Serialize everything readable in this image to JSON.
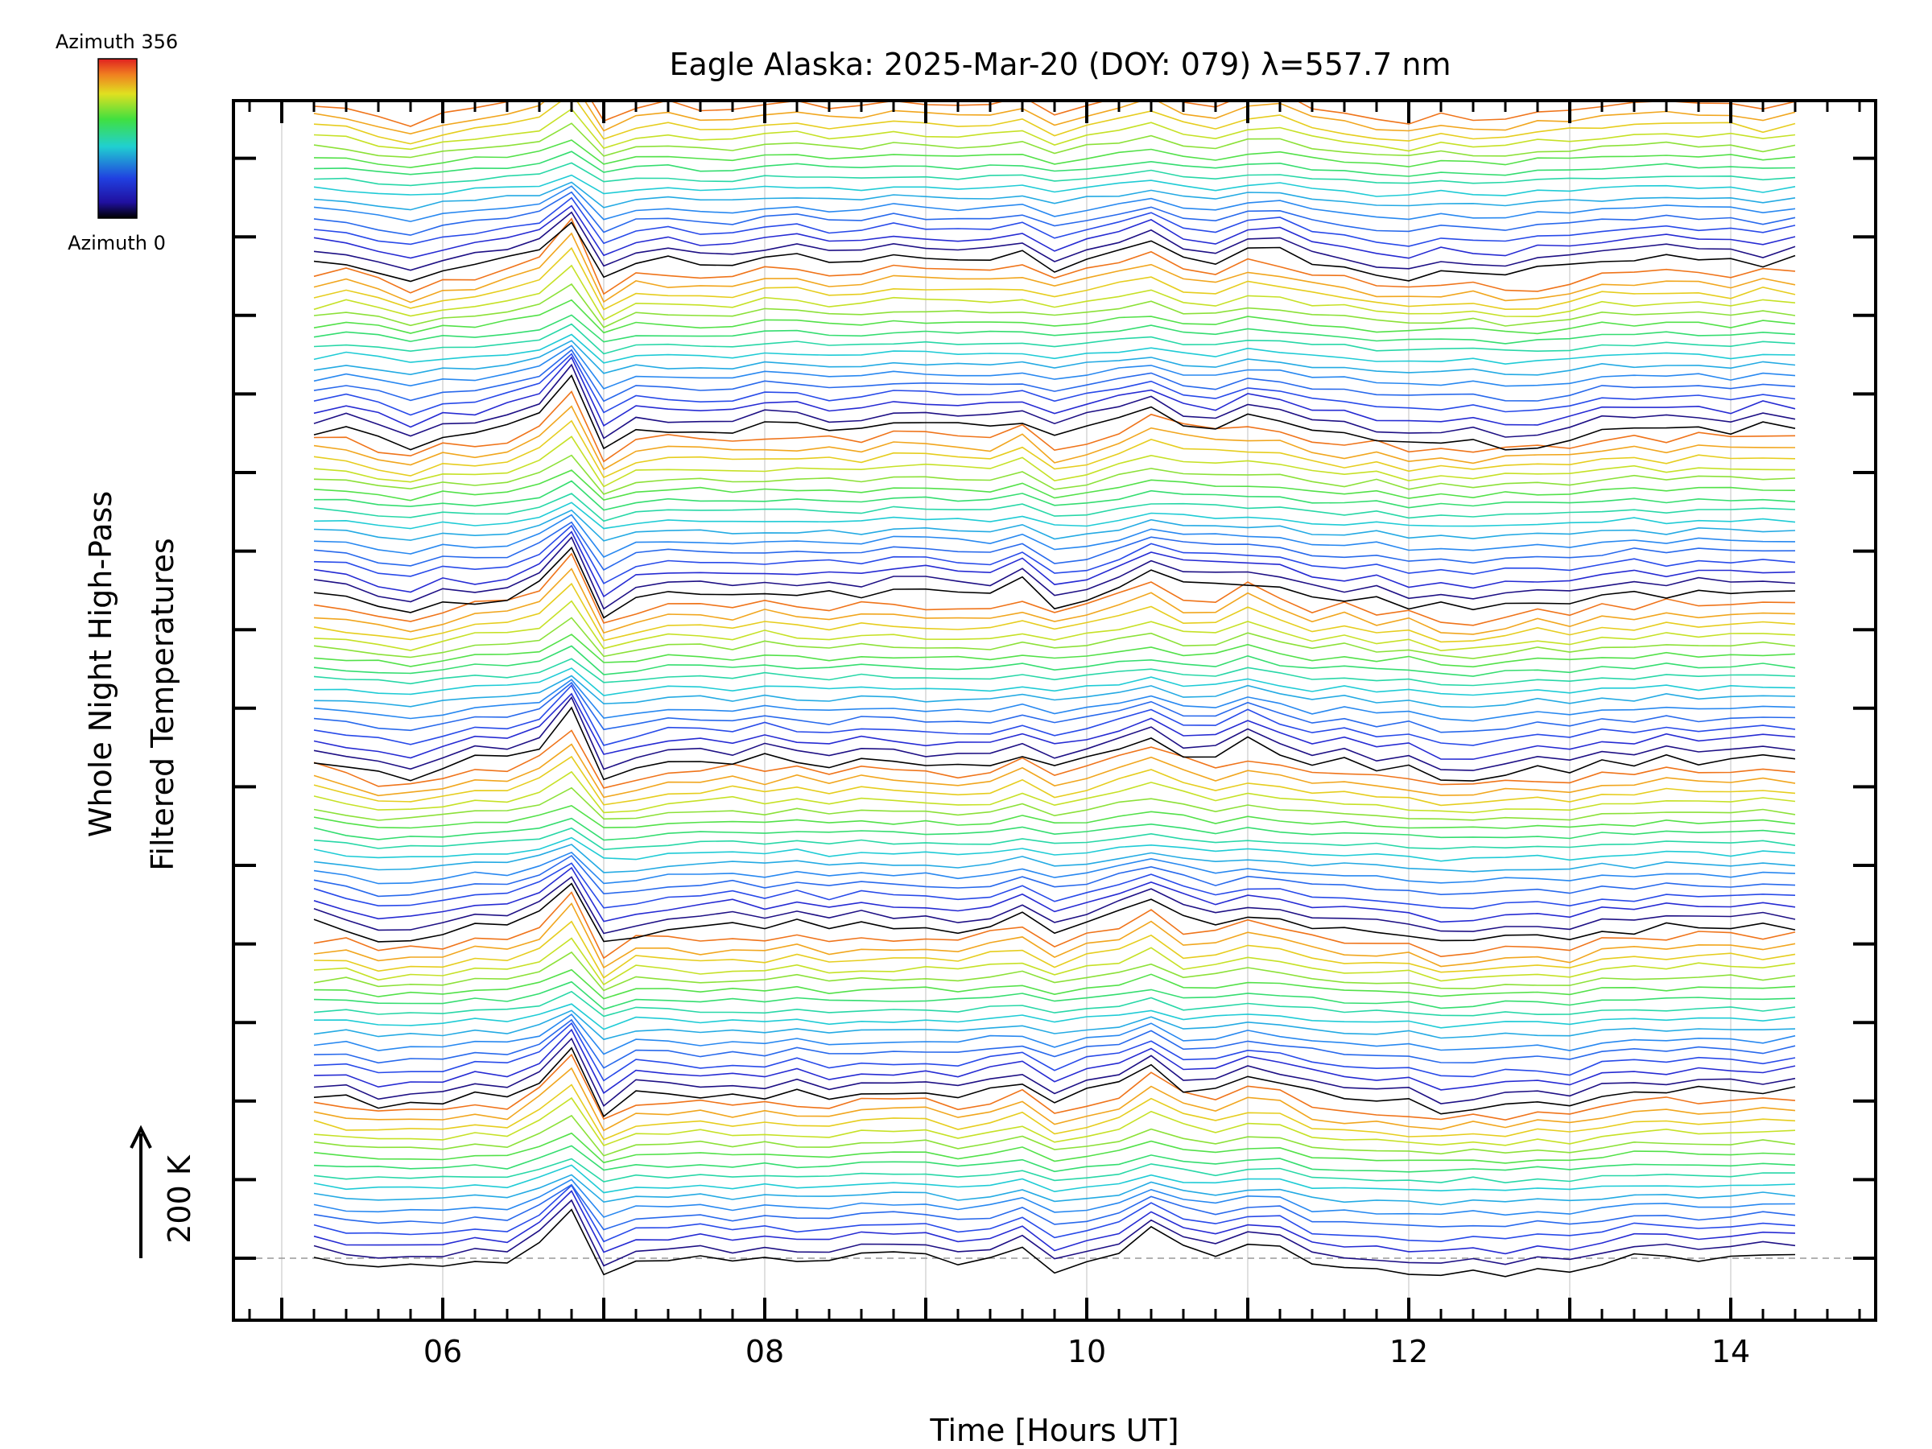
{
  "chart_data": {
    "type": "line",
    "title": "Eagle Alaska: 2025-Mar-20 (DOY: 079) λ=557.7 nm",
    "xlabel": "Time [Hours UT]",
    "ylabel_line1": "Whole Night High-Pass",
    "ylabel_line2": "Filtered Temperatures",
    "scale_label": "200 K",
    "xlim": [
      4.7,
      14.9
    ],
    "x_ticks": [
      "06",
      "08",
      "10",
      "12",
      "14"
    ],
    "x_tick_values": [
      6,
      8,
      10,
      12,
      14
    ],
    "grid": "vertical",
    "legend": {
      "type": "colorbar",
      "placement": "top-left",
      "top_label": "Azimuth 356",
      "bottom_label": "Azimuth 0"
    },
    "colors": {
      "azimuth_0": "#000000",
      "azimuth_low": "#2020d0",
      "azimuth_mid": "#20d0c0",
      "azimuth_high": "#f0e020",
      "azimuth_356": "#e04010"
    },
    "series_summary": {
      "count": 112,
      "x_start": 5.2,
      "x_end": 14.4,
      "x_step": 0.2,
      "bands": 7
    }
  }
}
